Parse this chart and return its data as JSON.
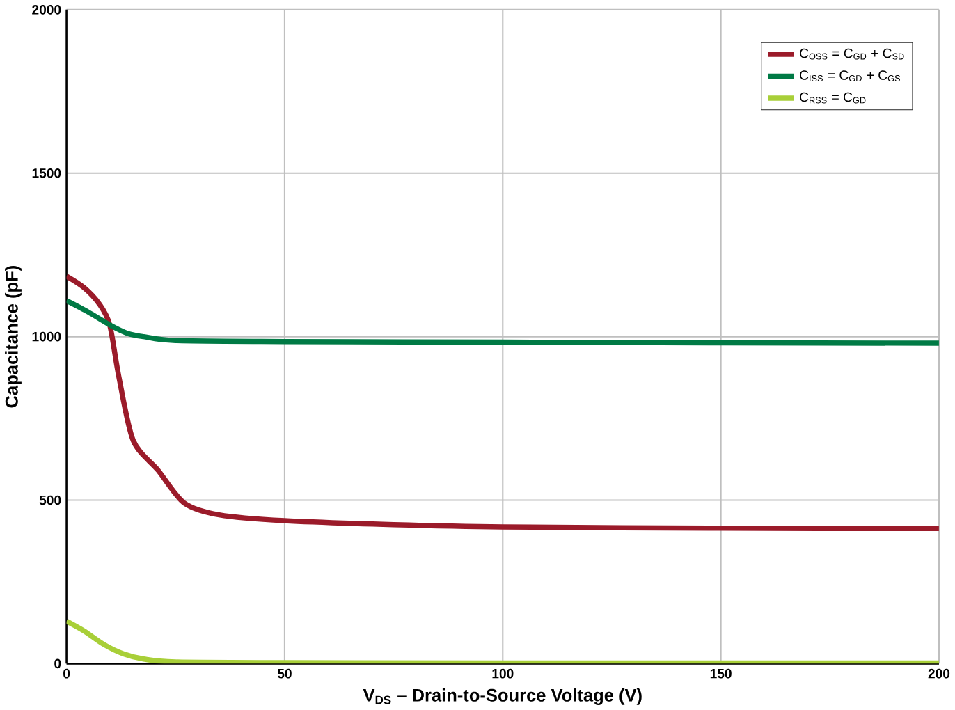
{
  "chart_data": {
    "type": "line",
    "xlabel": "V$_{DS}$ – Drain-to-Source Voltage (V)",
    "ylabel": "Capacitance (pF)",
    "xlim": [
      0,
      200
    ],
    "ylim": [
      0,
      2000
    ],
    "xticks": [
      0,
      50,
      100,
      150,
      200
    ],
    "yticks": [
      0,
      500,
      1000,
      1500,
      2000
    ],
    "grid": true,
    "legend": "top right",
    "marker": "none",
    "line_style": "solid",
    "series": [
      {
        "name": "C$_{OSS}$ = C$_{GD}$ + C$_{SD}$",
        "color": "#9b1b2a",
        "x": [
          0,
          4,
          7.5,
          9.9,
          12,
          15.3,
          21,
          27,
          35,
          50,
          75,
          100,
          150,
          200
        ],
        "values": [
          1185,
          1150,
          1100,
          1036,
          877,
          682,
          591,
          491,
          455,
          437,
          425,
          418,
          414,
          413
        ]
      },
      {
        "name": "C$_{ISS}$ = C$_{GD}$ + C$_{GS}$",
        "color": "#007a45",
        "x": [
          0,
          5,
          9.9,
          14,
          17.7,
          25,
          50,
          100,
          150,
          200
        ],
        "values": [
          1110,
          1075,
          1036,
          1010,
          1000,
          988,
          985,
          983,
          981,
          980
        ]
      },
      {
        "name": "C$_{RSS}$ = C$_{GD}$",
        "color": "#a8cf38",
        "x": [
          0,
          4,
          8.5,
          13,
          17.7,
          25,
          50,
          100,
          200
        ],
        "values": [
          130,
          100,
          59,
          30,
          14,
          5,
          3,
          2,
          2
        ]
      }
    ]
  }
}
